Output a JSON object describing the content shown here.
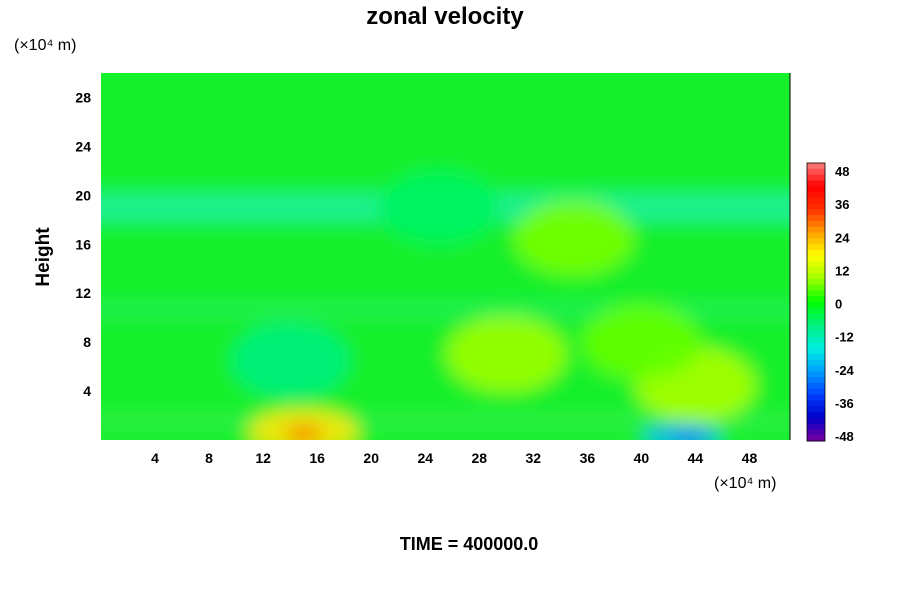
{
  "chart_data": {
    "type": "heatmap",
    "title": "zonal velocity",
    "xlabel": "",
    "ylabel": "Height",
    "x_unit_label": "(×10⁴ m)",
    "y_unit_label": "(×10⁴ m)",
    "footer": "TIME = 400000.0",
    "xlim": [
      0,
      51
    ],
    "ylim": [
      0,
      30
    ],
    "x_ticks": [
      "4",
      "8",
      "12",
      "16",
      "20",
      "24",
      "28",
      "32",
      "36",
      "40",
      "44",
      "48"
    ],
    "y_ticks": [
      "4",
      "8",
      "12",
      "16",
      "20",
      "24",
      "28"
    ],
    "colorbar": {
      "ticks": [
        "48",
        "36",
        "24",
        "12",
        "0",
        "-12",
        "-24",
        "-36",
        "-48"
      ],
      "range": [
        -48,
        48
      ],
      "colors": [
        "#7a00a0",
        "#0000c8",
        "#0040ff",
        "#00a0ff",
        "#00f0e0",
        "#00f080",
        "#00ff00",
        "#a0ff00",
        "#ffff00",
        "#ffa000",
        "#ff3000",
        "#ff0000",
        "#ff8080"
      ]
    },
    "field_description_values": {
      "background": 0,
      "features": [
        {
          "x": 15,
          "y": 0.7,
          "value": 18
        },
        {
          "x": 30,
          "y": 7,
          "value": 8
        },
        {
          "x": 44,
          "y": 4.5,
          "value": 9
        },
        {
          "x": 14,
          "y": 6.5,
          "value": -8
        },
        {
          "x": 43,
          "y": 0.3,
          "value": -22
        },
        {
          "x": 25,
          "y": 19,
          "value": -6
        },
        {
          "x": 35,
          "y": 16.5,
          "value": 6
        },
        {
          "x": 40,
          "y": 8,
          "value": 5
        }
      ]
    }
  }
}
